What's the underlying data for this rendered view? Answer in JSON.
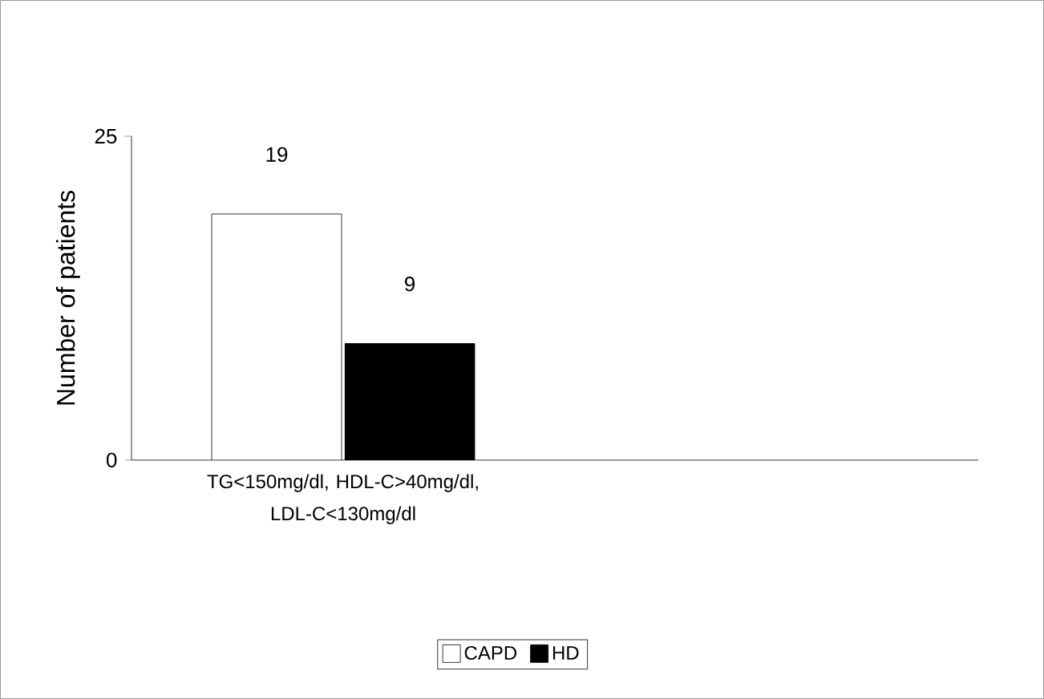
{
  "chart_data": {
    "type": "bar",
    "ylabel": "Number of patients",
    "categories": [
      "TG<150mg/dl, HDL-C>40mg/dl, LDL-C<130mg/dl",
      null
    ],
    "series": [
      {
        "name": "CAPD",
        "color": "#ffffff",
        "values": [
          19,
          null
        ]
      },
      {
        "name": "HD",
        "color": "#000000",
        "values": [
          9,
          null
        ]
      }
    ],
    "ylim": [
      0,
      25
    ],
    "yticks": [
      0,
      25
    ],
    "data_labels": true,
    "legend": "bottom",
    "grid": false
  }
}
